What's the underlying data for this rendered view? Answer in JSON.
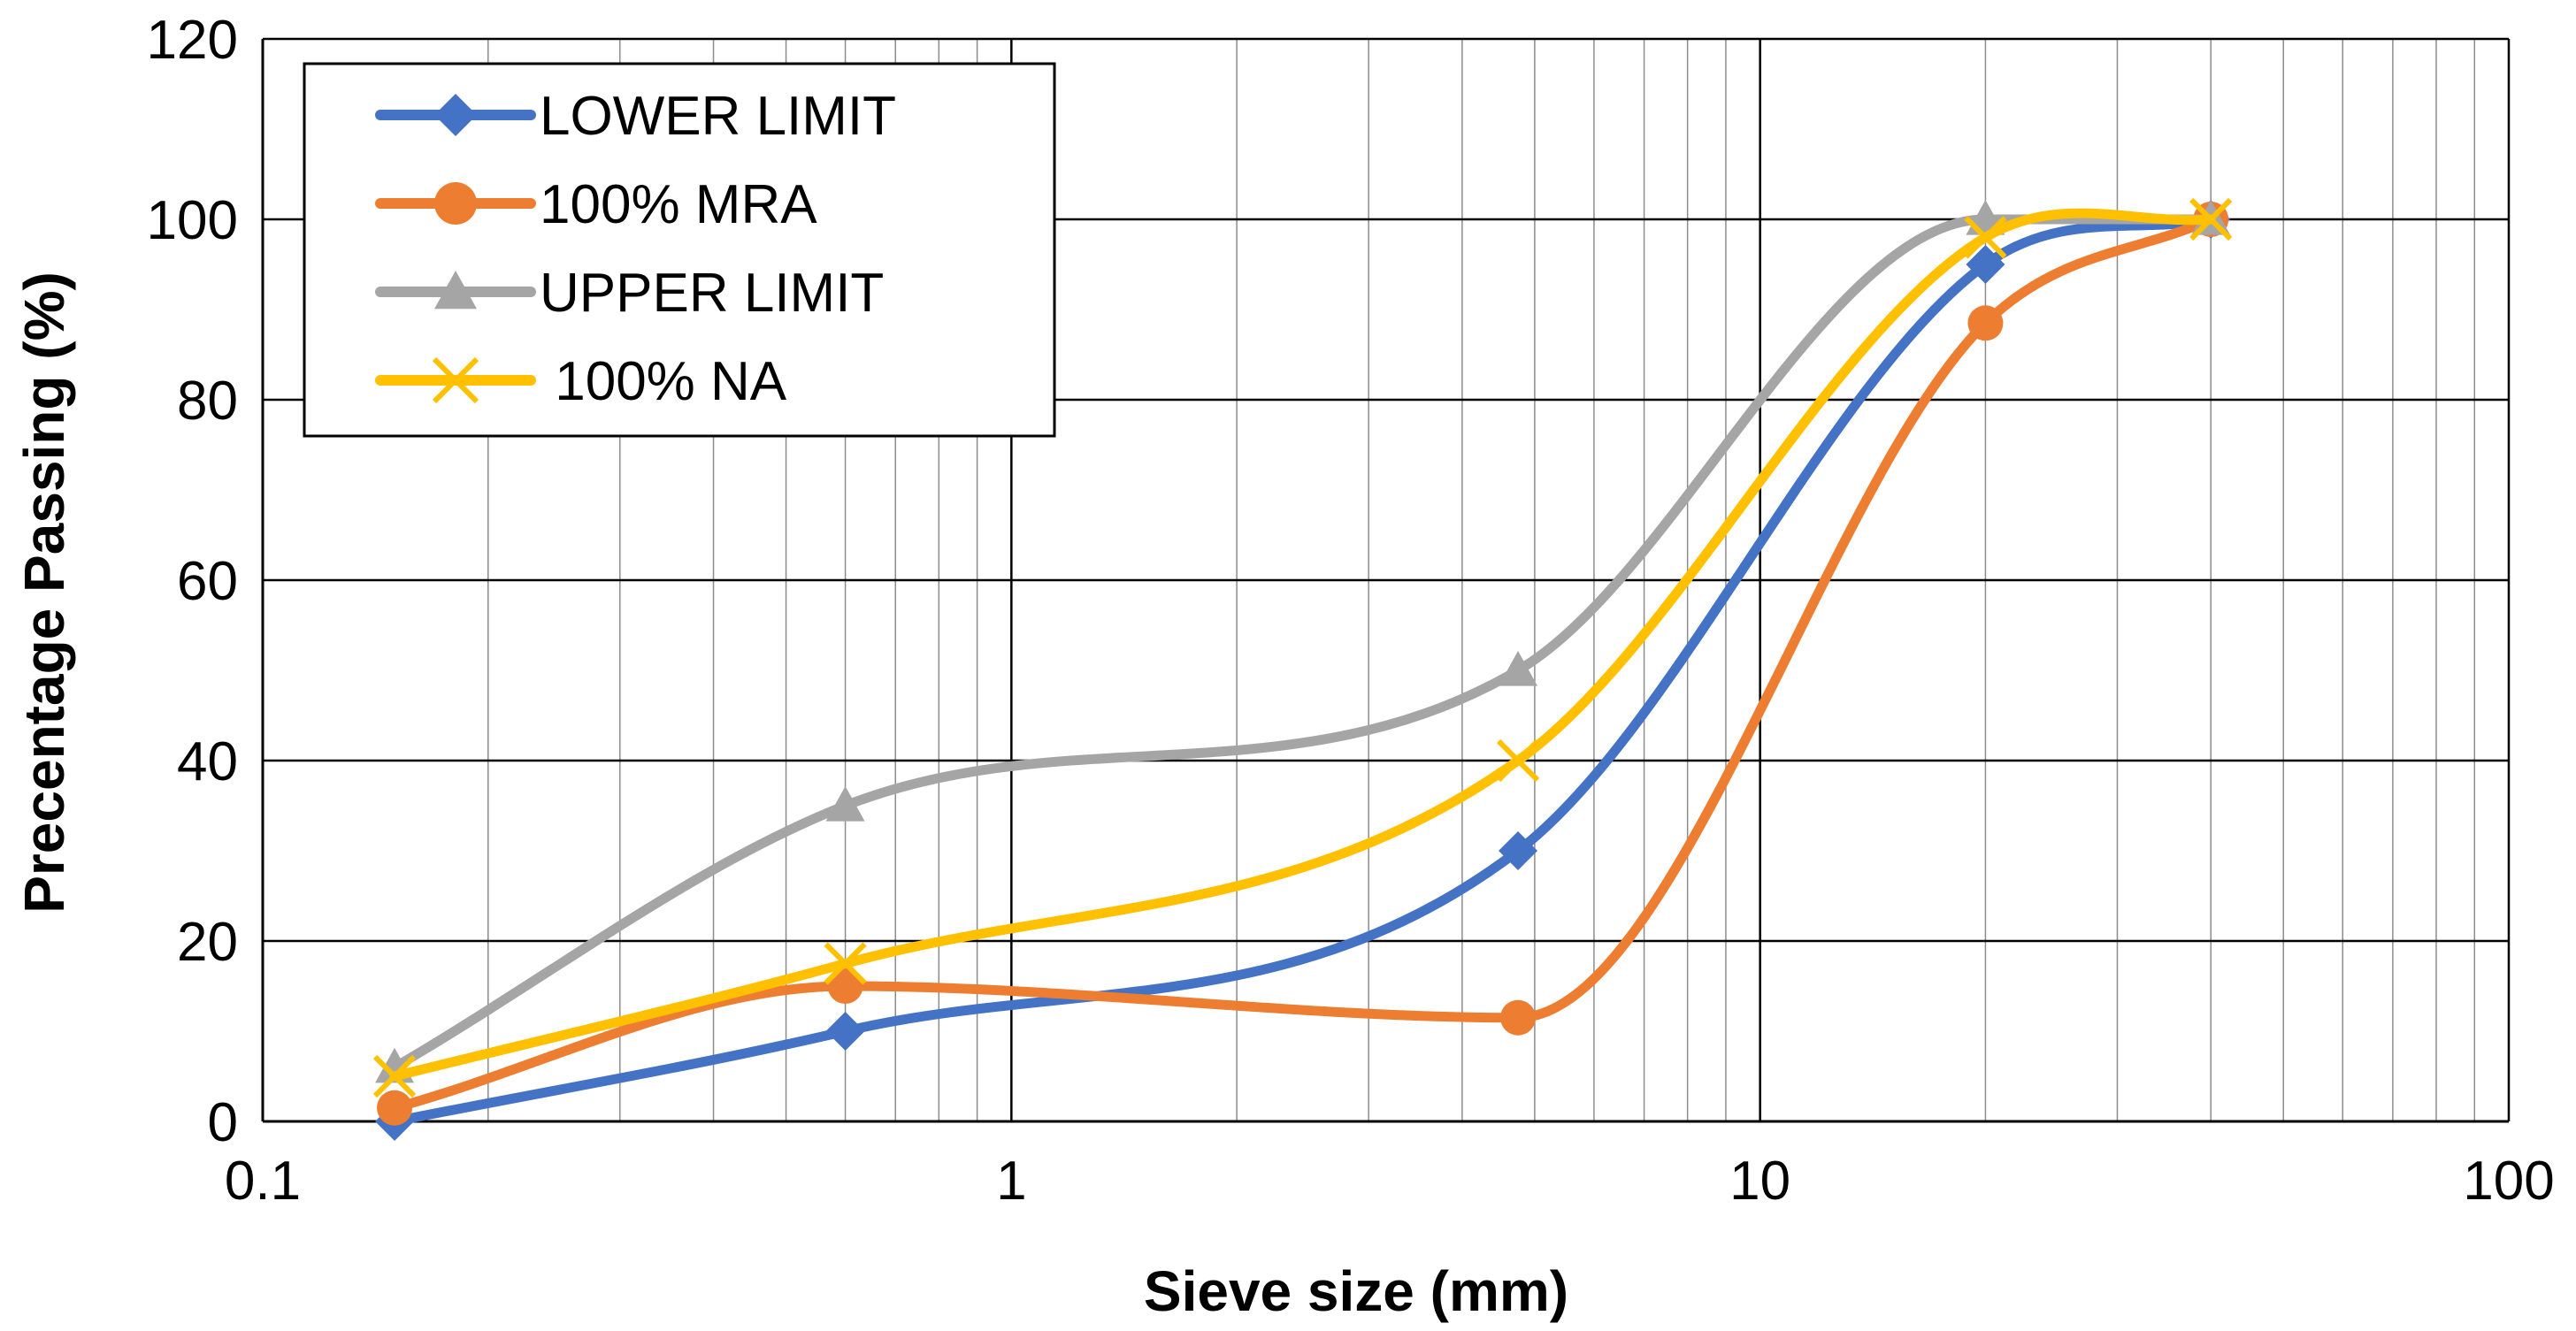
{
  "chart_data": {
    "type": "line",
    "title": "",
    "xlabel": "Sieve size (mm)",
    "ylabel": "Precentage  Passing (%)",
    "xscale": "log",
    "xlim": [
      0.1,
      100
    ],
    "ylim": [
      0,
      120
    ],
    "x_ticks": [
      "0.1",
      "1",
      "10",
      "100"
    ],
    "y_ticks": [
      "0",
      "20",
      "40",
      "60",
      "80",
      "100",
      "120"
    ],
    "grid": true,
    "legend_position": "top-left",
    "x": [
      0.15,
      0.6,
      4.75,
      20,
      40
    ],
    "series": [
      {
        "name": "LOWER LIMIT",
        "color": "#4472C4",
        "marker": "diamond",
        "values": [
          0,
          10,
          30,
          95,
          100
        ]
      },
      {
        "name": "100% MRA",
        "color": "#ED7D31",
        "marker": "circle",
        "values": [
          1.5,
          15,
          11.5,
          88.5,
          100
        ]
      },
      {
        "name": "UPPER LIMIT",
        "color": "#A5A5A5",
        "marker": "triangle",
        "values": [
          6,
          35,
          50,
          100,
          100
        ]
      },
      {
        "name": " 100% NA",
        "color": "#FFC000",
        "marker": "x",
        "values": [
          5,
          17.5,
          40,
          98,
          100
        ]
      }
    ]
  }
}
